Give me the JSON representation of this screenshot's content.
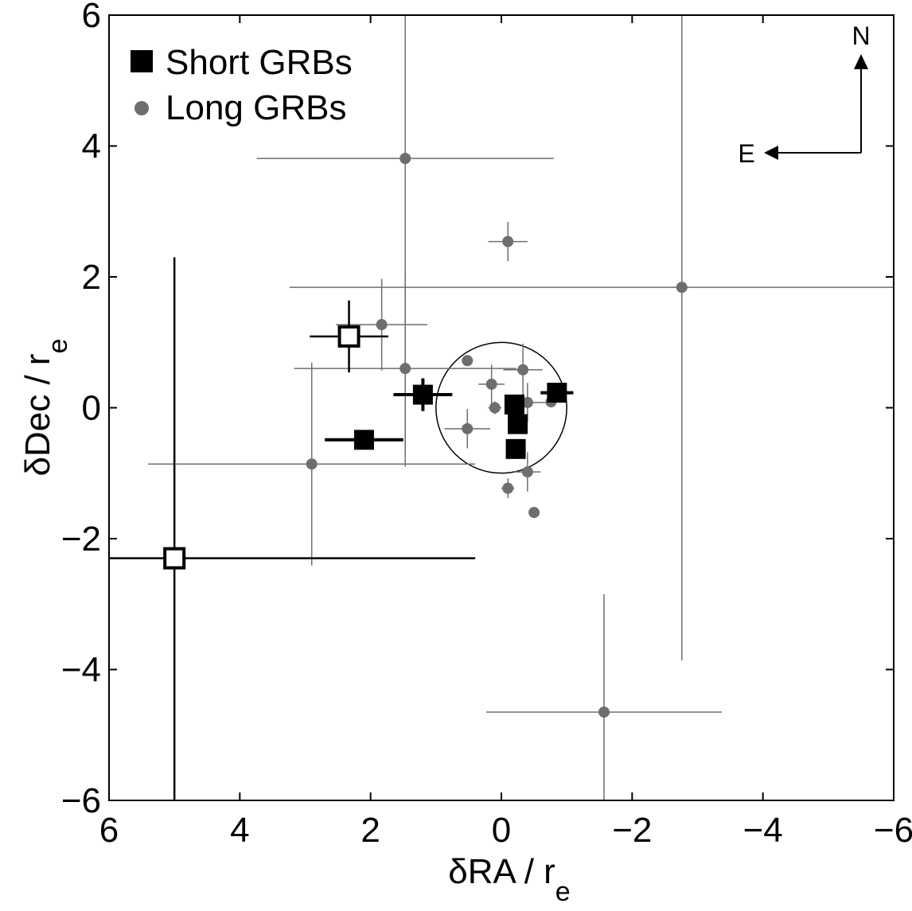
{
  "chart_data": {
    "type": "scatter",
    "xlabel": "δRA / r",
    "xlabel_sub": "e",
    "ylabel": "δDec / r",
    "ylabel_sub": "e",
    "xlim": [
      6,
      -6
    ],
    "ylim": [
      -6,
      6
    ],
    "x_reversed": true,
    "xticks": [
      6,
      4,
      2,
      0,
      -2,
      -4,
      -6
    ],
    "yticks": [
      -6,
      -4,
      -2,
      0,
      2,
      4,
      6
    ],
    "xtick_labels": [
      "6",
      "4",
      "2",
      "0",
      "−2",
      "−4",
      "−6"
    ],
    "ytick_labels": [
      "−6",
      "−4",
      "−2",
      "0",
      "2",
      "4",
      "6"
    ],
    "grid": false,
    "legend_position": "top-left",
    "unit_circle_radius": 1,
    "compass": {
      "north_label": "N",
      "east_label": "E"
    },
    "colors": {
      "short": "#000000",
      "long": "#6e6e6e"
    },
    "series": [
      {
        "name": "Short GRBs",
        "marker": "square",
        "points": [
          {
            "x": 2.33,
            "y": 1.09,
            "xerr": [
              0.6,
              0.6
            ],
            "yerr": [
              0.55,
              0.55
            ],
            "filled": false
          },
          {
            "x": 5.0,
            "y": -2.3,
            "xerr": [
              1.0,
              4.6
            ],
            "yerr": [
              3.7,
              4.6
            ],
            "filled": false
          },
          {
            "x": 2.1,
            "y": -0.49,
            "xerr": [
              0.6,
              0.6
            ],
            "yerr": [
              0.0,
              0.0
            ],
            "filled": true
          },
          {
            "x": 1.2,
            "y": 0.2,
            "xerr": [
              0.45,
              0.45
            ],
            "yerr": [
              0.25,
              0.25
            ],
            "filled": true
          },
          {
            "x": -0.2,
            "y": 0.05,
            "xerr": [
              0.1,
              0.1
            ],
            "yerr": [
              0.1,
              0.1
            ],
            "filled": true
          },
          {
            "x": -0.25,
            "y": -0.25,
            "xerr": [
              0.08,
              0.08
            ],
            "yerr": [
              0.08,
              0.08
            ],
            "filled": true
          },
          {
            "x": -0.22,
            "y": -0.63,
            "xerr": [
              0.1,
              0.1
            ],
            "yerr": [
              0.12,
              0.12
            ],
            "filled": true
          },
          {
            "x": -0.85,
            "y": 0.23,
            "xerr": [
              0.25,
              0.25
            ],
            "yerr": [
              0.05,
              0.05
            ],
            "filled": true
          }
        ]
      },
      {
        "name": "Long GRBs",
        "marker": "circle",
        "points": [
          {
            "x": 1.47,
            "y": 3.81,
            "xerr": [
              2.27,
              2.27
            ],
            "yerr": [
              4.5,
              2.2
            ]
          },
          {
            "x": -0.1,
            "y": 2.54,
            "xerr": [
              0.3,
              0.3
            ],
            "yerr": [
              0.3,
              0.3
            ]
          },
          {
            "x": -2.76,
            "y": 1.84,
            "xerr": [
              6.0,
              6.0
            ],
            "yerr": [
              5.7,
              5.7
            ]
          },
          {
            "x": 1.83,
            "y": 1.27,
            "xerr": [
              0.7,
              0.7
            ],
            "yerr": [
              0.7,
              0.7
            ]
          },
          {
            "x": 1.47,
            "y": 0.6,
            "xerr": [
              1.7,
              1.7
            ],
            "yerr": [
              1.5,
              1.5
            ]
          },
          {
            "x": 0.52,
            "y": 0.72,
            "xerr": [
              0.0,
              0.0
            ],
            "yerr": [
              0.05,
              0.05
            ]
          },
          {
            "x": 0.15,
            "y": 0.36,
            "xerr": [
              0.2,
              0.2
            ],
            "yerr": [
              0.3,
              0.3
            ]
          },
          {
            "x": -0.33,
            "y": 0.58,
            "xerr": [
              0.3,
              0.3
            ],
            "yerr": [
              0.4,
              0.4
            ]
          },
          {
            "x": 0.1,
            "y": 0.0,
            "xerr": [
              0.1,
              0.1
            ],
            "yerr": [
              0.1,
              0.1
            ]
          },
          {
            "x": -0.4,
            "y": 0.08,
            "xerr": [
              0.3,
              0.3
            ],
            "yerr": [
              0.3,
              0.3
            ]
          },
          {
            "x": -0.76,
            "y": 0.09,
            "xerr": [
              0.05,
              0.05
            ],
            "yerr": [
              0.05,
              0.05
            ]
          },
          {
            "x": 0.52,
            "y": -0.32,
            "xerr": [
              0.35,
              0.35
            ],
            "yerr": [
              0.3,
              0.3
            ]
          },
          {
            "x": 2.9,
            "y": -0.86,
            "xerr": [
              2.5,
              2.5
            ],
            "yerr": [
              1.55,
              1.55
            ]
          },
          {
            "x": -0.4,
            "y": -0.98,
            "xerr": [
              0.2,
              0.2
            ],
            "yerr": [
              0.3,
              0.3
            ]
          },
          {
            "x": -0.1,
            "y": -1.23,
            "xerr": [
              0.1,
              0.1
            ],
            "yerr": [
              0.15,
              0.15
            ]
          },
          {
            "x": -0.5,
            "y": -1.6,
            "xerr": [
              0.05,
              0.05
            ],
            "yerr": [
              0.05,
              0.05
            ]
          },
          {
            "x": -1.57,
            "y": -4.65,
            "xerr": [
              1.8,
              1.8
            ],
            "yerr": [
              1.8,
              1.8
            ]
          }
        ]
      }
    ]
  }
}
